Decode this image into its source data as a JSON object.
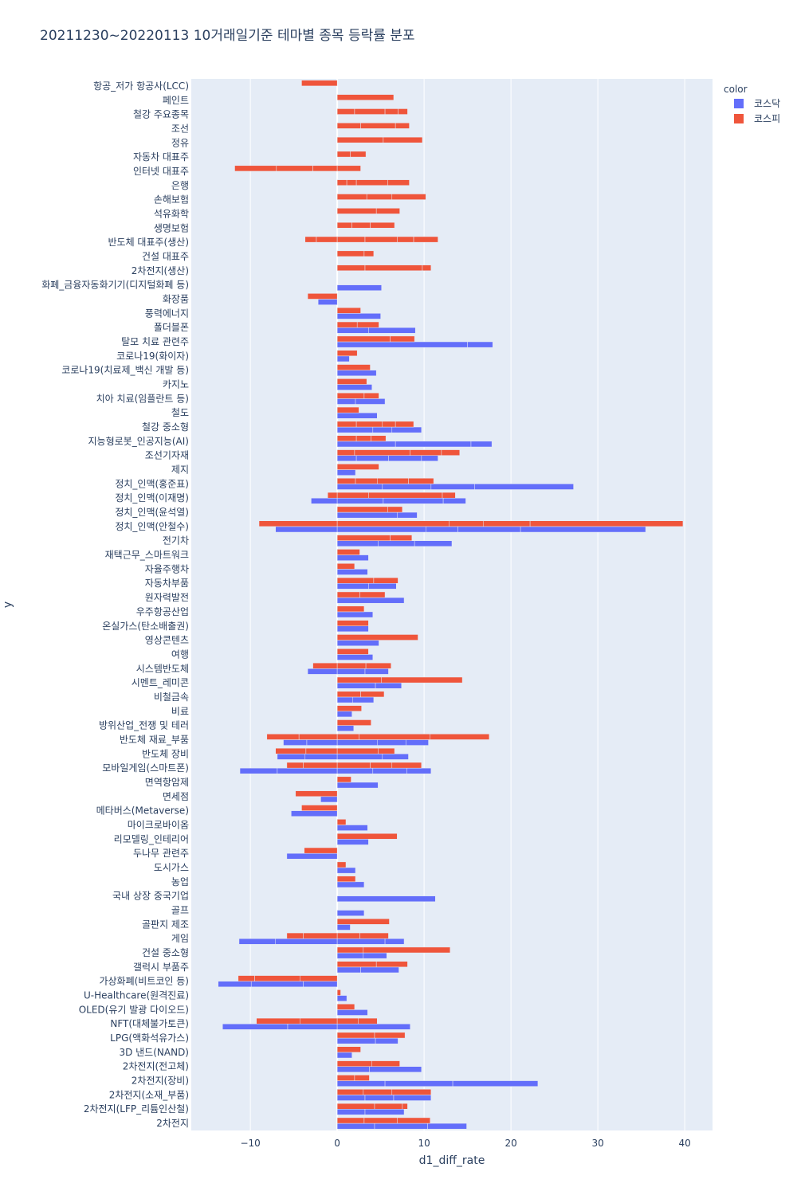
{
  "chart_data": {
    "type": "bar",
    "orientation": "horizontal",
    "barmode": "group",
    "title": "20211230~20220113 10거래일기준 테마별 종목 등락률 분포",
    "xlabel": "d1_diff_rate",
    "ylabel": "y",
    "xlim": [
      -16.8,
      43.2
    ],
    "xticks": [
      -10,
      0,
      10,
      20,
      30,
      40
    ],
    "grid": true,
    "legend": {
      "title": "color",
      "position": "top-right",
      "entries": [
        {
          "name": "코스닥",
          "color": "#636efa"
        },
        {
          "name": "코스피",
          "color": "#ef553b"
        }
      ]
    },
    "categories": [
      "항공_저가 항공사(LCC)",
      "페인트",
      "철강 주요종목",
      "조선",
      "정유",
      "자동차 대표주",
      "인터넷 대표주",
      "은행",
      "손해보험",
      "석유화학",
      "생명보험",
      "반도체 대표주(생산)",
      "건설 대표주",
      "2차전지(생산)",
      "화폐_금융자동화기기(디지털화폐 등)",
      "화장품",
      "풍력에너지",
      "폴더블폰",
      "탈모 치료 관련주",
      "코로나19(화이자)",
      "코로나19(치료제_백신 개발 등)",
      "카지노",
      "치아 치료(임플란트 등)",
      "철도",
      "철강 중소형",
      "지능형로봇_인공지능(AI)",
      "조선기자재",
      "제지",
      "정치_인맥(홍준표)",
      "정치_인맥(이재명)",
      "정치_인맥(윤석열)",
      "정치_인맥(안철수)",
      "전기차",
      "재택근무_스마트워크",
      "자율주행차",
      "자동차부품",
      "원자력발전",
      "우주항공산업",
      "온실가스(탄소배출권)",
      "영상콘텐츠",
      "여행",
      "시스템반도체",
      "시멘트_레미콘",
      "비철금속",
      "비료",
      "방위산업_전쟁 및 테러",
      "반도체 재료_부품",
      "반도체 장비",
      "모바일게임(스마트폰)",
      "면역항암제",
      "면세점",
      "메타버스(Metaverse)",
      "마이크로바이옴",
      "리모델링_인테리어",
      "두나무 관련주",
      "도시가스",
      "농업",
      "국내 상장 중국기업",
      "골프",
      "골판지 제조",
      "게임",
      "건설 중소형",
      "갤럭시 부품주",
      "가상화폐(비트코인 등)",
      "U-Healthcare(원격진료)",
      "OLED(유기 발광 다이오드)",
      "NFT(대체불가토큰)",
      "LPG(액화석유가스)",
      "3D 낸드(NAND)",
      "2차전지(전고체)",
      "2차전지(장비)",
      "2차전지(소재_부품)",
      "2차전지(LFP_리튬인산철)",
      "2차전지"
    ],
    "series": [
      {
        "name": "코스피",
        "color": "#ef553b",
        "values": [
          [
            -4.1,
            0
          ],
          [
            0,
            6.5
          ],
          [
            0,
            2,
            5.5,
            7,
            8.1
          ],
          [
            0,
            2.7,
            6.7,
            8.3
          ],
          [
            0,
            5.3,
            9.8
          ],
          [
            0,
            1.5,
            3.3
          ],
          [
            -11.8,
            -7,
            -2.8,
            0,
            2.7
          ],
          [
            0,
            1.1,
            2.2,
            5.8,
            8.3
          ],
          [
            0,
            3.4,
            6.3,
            10.2
          ],
          [
            0,
            4.5,
            7.2
          ],
          [
            0,
            1.7,
            3.8,
            6.6
          ],
          [
            -3.7,
            -2.4,
            0,
            3.2,
            6.9,
            8.8,
            11.6
          ],
          [
            0,
            3.1,
            4.2
          ],
          [
            0,
            3.2,
            9.8,
            10.8
          ],
          null,
          [
            -3.4,
            0
          ],
          [
            0,
            2.7
          ],
          [
            0,
            2.3,
            4.8
          ],
          [
            0,
            6.1,
            8.9
          ],
          [
            0,
            2.3
          ],
          [
            0,
            3.8
          ],
          [
            0,
            3.4
          ],
          [
            0,
            3.1,
            4.8
          ],
          [
            0,
            2.5
          ],
          [
            0,
            2.2,
            5.2,
            6.7,
            8.8
          ],
          [
            0,
            2.2,
            3.9,
            5.6
          ],
          [
            0,
            2,
            8.4,
            12,
            14.1
          ],
          [
            0,
            4.8
          ],
          [
            0,
            2.1,
            4.6,
            8.2,
            11.1
          ],
          [
            -1.1,
            0,
            3.6,
            12.1,
            13.6
          ],
          [
            0,
            5.8,
            7.5
          ],
          [
            -9,
            0,
            12.9,
            16.8,
            22.2,
            39.8
          ],
          [
            0,
            6.1,
            8.6
          ],
          [
            0,
            2.6
          ],
          [
            0,
            2
          ],
          [
            0,
            4.2,
            7
          ],
          [
            0,
            2.6,
            5.5
          ],
          [
            0,
            3.1
          ],
          [
            0,
            3.6
          ],
          [
            0,
            9.3
          ],
          [
            0,
            3.6
          ],
          [
            -2.8,
            0,
            3.3,
            6.2
          ],
          [
            0,
            5.1,
            14.4
          ],
          [
            0,
            2.7,
            5.4
          ],
          [
            0,
            2.8
          ],
          [
            0,
            3.9
          ],
          [
            -8.1,
            -4.4,
            0,
            2.5,
            10.7,
            17.5
          ],
          [
            -7.1,
            -3.6,
            0,
            4.7,
            6.6
          ],
          [
            -5.8,
            -3.9,
            0,
            3.8,
            6.3,
            9.7
          ],
          [
            0,
            1.6
          ],
          [
            -4.8,
            0
          ],
          [
            -4.1,
            0
          ],
          [
            0,
            1
          ],
          [
            0,
            6.9
          ],
          [
            -3.8,
            0
          ],
          [
            0,
            1
          ],
          [
            0,
            2.1
          ],
          null,
          null,
          [
            0,
            6
          ],
          [
            -5.8,
            -3.9,
            0,
            2.6,
            5.9
          ],
          [
            0,
            3,
            13
          ],
          [
            0,
            4.5,
            8.1
          ],
          [
            -11.4,
            -9.5,
            -4.3,
            0
          ],
          [
            0,
            0.4
          ],
          [
            0,
            2
          ],
          [
            -9.3,
            -4.3,
            0,
            2.4,
            4.6
          ],
          [
            0,
            4.3,
            7.8
          ],
          [
            0,
            2.7
          ],
          [
            0,
            4,
            7.2
          ],
          [
            0,
            2,
            3.7
          ],
          [
            0,
            3,
            6.3,
            10.8
          ],
          [
            0,
            4.3,
            7.5,
            8.1
          ],
          [
            0,
            3.1,
            6.9,
            10.7
          ]
        ]
      },
      {
        "name": "코스닥",
        "color": "#636efa",
        "values": [
          null,
          null,
          null,
          null,
          null,
          null,
          null,
          null,
          null,
          null,
          null,
          null,
          null,
          null,
          [
            0,
            5.1
          ],
          [
            -2.2,
            0
          ],
          [
            0,
            5
          ],
          [
            0,
            3.6,
            9
          ],
          [
            0,
            15,
            17.9
          ],
          [
            0,
            1.4
          ],
          [
            0,
            4.5
          ],
          [
            0,
            4
          ],
          [
            0,
            2.1,
            5.5
          ],
          [
            0,
            4.6
          ],
          [
            0,
            4.1,
            6.3,
            9.7
          ],
          [
            0,
            6.7,
            15.4,
            17.8
          ],
          [
            0,
            2.2,
            5.9,
            9.7,
            11.6
          ],
          [
            0,
            2.1
          ],
          [
            0,
            5.2,
            10.8,
            15.8,
            27.2
          ],
          [
            -3,
            0,
            5.3,
            12.2,
            14.8
          ],
          [
            0,
            6.9,
            9.2
          ],
          [
            -7.1,
            0,
            10.2,
            13.9,
            21.1,
            35.5
          ],
          [
            0,
            4.7,
            8.9,
            13.2
          ],
          [
            0,
            3.6
          ],
          [
            0,
            3.5
          ],
          [
            0,
            3.6,
            6.8
          ],
          [
            0,
            7.7
          ],
          [
            0,
            4.1
          ],
          [
            0,
            3.6
          ],
          [
            0,
            4.8
          ],
          [
            0,
            4.1
          ],
          [
            -3.4,
            0,
            3.2,
            5.9
          ],
          [
            0,
            4.4,
            7.4
          ],
          [
            0,
            1.8,
            4.2
          ],
          [
            0,
            1.7
          ],
          [
            0,
            1.9
          ],
          [
            -6.2,
            -3.5,
            0,
            4.6,
            7.9,
            10.5
          ],
          [
            -6.9,
            -3.7,
            0,
            5.2,
            8.2
          ],
          [
            -11.2,
            -6.9,
            0,
            4.1,
            8,
            10.8
          ],
          [
            0,
            4.7
          ],
          [
            -1.9,
            0
          ],
          [
            -5.3,
            0
          ],
          [
            0,
            3.5
          ],
          [
            0,
            3.6
          ],
          [
            -5.8,
            0
          ],
          [
            0,
            2.1
          ],
          [
            0,
            3.1
          ],
          [
            0,
            11.3
          ],
          [
            0,
            3.1
          ],
          [
            0,
            1.5
          ],
          [
            -11.3,
            -7.1,
            0,
            5.5,
            7.7
          ],
          [
            0,
            3,
            5.7
          ],
          [
            0,
            2.7,
            7.1
          ],
          [
            -13.7,
            -9.9,
            -3.9,
            0
          ],
          [
            0,
            1.1
          ],
          [
            0,
            3.5
          ],
          [
            -13.2,
            -5.7,
            0,
            8.4
          ],
          [
            0,
            4.4,
            7
          ],
          [
            0,
            1.7
          ],
          [
            0,
            3.7,
            9.7
          ],
          [
            0,
            5.5,
            13.3,
            23.1
          ],
          [
            0,
            3.2,
            6.5,
            10.8
          ],
          [
            0,
            3.2,
            7.7
          ],
          [
            0,
            4.3,
            10.4,
            14.9
          ]
        ]
      }
    ]
  }
}
